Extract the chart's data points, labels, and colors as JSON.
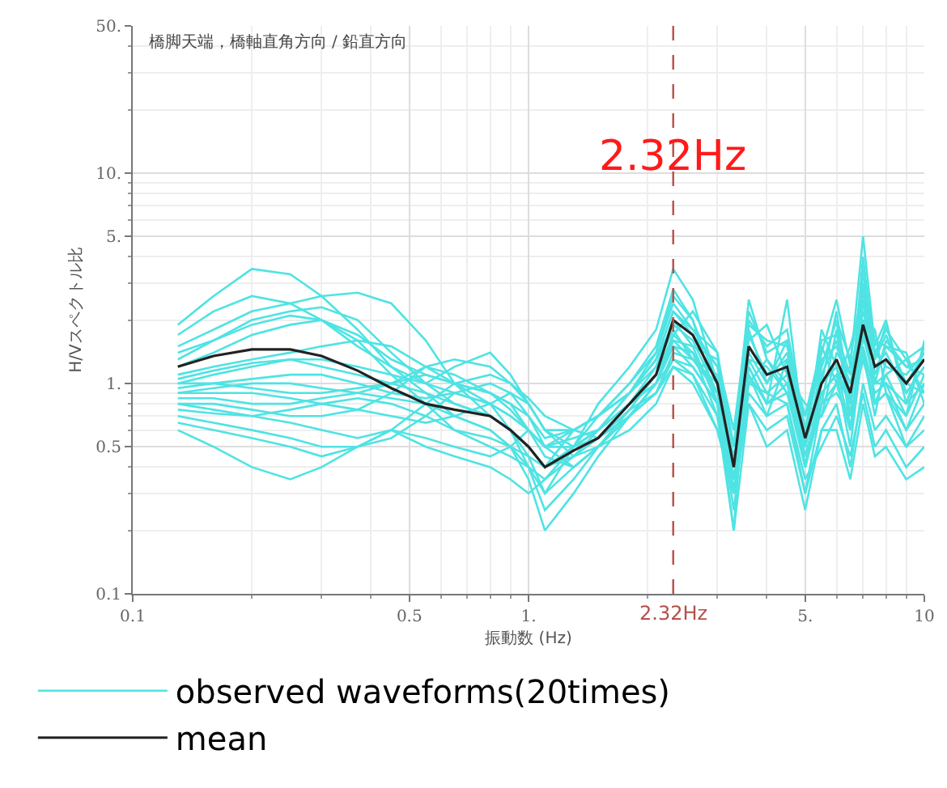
{
  "chart_data": {
    "type": "line",
    "title": "橋脚天端，橋軸直角方向 / 鉛直方向",
    "xlabel": "振動数 (Hz)",
    "ylabel": "H/Vスペクトル比",
    "x": [
      0.13,
      0.16,
      0.2,
      0.25,
      0.3,
      0.37,
      0.45,
      0.55,
      0.65,
      0.8,
      0.9,
      1,
      1.1,
      1.3,
      1.5,
      1.8,
      2.1,
      2.32,
      2.6,
      3,
      3.3,
      3.6,
      4,
      4.5,
      5,
      5.5,
      6,
      6.5,
      7,
      7.5,
      8,
      9,
      10
    ],
    "xlim": [
      0.1,
      10
    ],
    "ylim": [
      0.1,
      50
    ],
    "xticks": [
      {
        "value": 0.1,
        "label": "0.1"
      },
      {
        "value": 0.5,
        "label": "0.5"
      },
      {
        "value": 1,
        "label": "1."
      },
      {
        "value": 5,
        "label": "5."
      },
      {
        "value": 10,
        "label": "10"
      }
    ],
    "yticks": [
      {
        "value": 0.1,
        "label": "0.1"
      },
      {
        "value": 0.5,
        "label": "0.5"
      },
      {
        "value": 1,
        "label": "1."
      },
      {
        "value": 5,
        "label": "5."
      },
      {
        "value": 10,
        "label": "10."
      },
      {
        "value": 50,
        "label": "50."
      }
    ],
    "log": "xy",
    "grid": true,
    "legend": "bottom",
    "ref_lines": [
      {
        "axis": "x",
        "value": 2.32,
        "label": "2.32Hz",
        "color": "#b5504a",
        "line_style": "dashed"
      }
    ],
    "annotations": [
      {
        "text": "2.32Hz",
        "x": 2.32,
        "y": 12
      }
    ],
    "series": [
      {
        "name": "observed waveforms(20times)",
        "color": "#4fe3e3",
        "values": [
          1.9,
          2.6,
          3.5,
          3.3,
          2.6,
          1.8,
          1.2,
          0.9,
          0.7,
          0.6,
          0.5,
          0.4,
          0.3,
          0.5,
          0.8,
          1.2,
          1.8,
          3.5,
          2.5,
          1.0,
          0.3,
          2.0,
          1.5,
          1.8,
          0.6,
          1.4,
          2.5,
          1.2,
          5.0,
          1.5,
          2.0,
          0.8,
          1.5
        ]
      },
      {
        "color": "#4fe3e3",
        "values": [
          1.7,
          2.2,
          2.6,
          2.4,
          2.0,
          1.5,
          1.2,
          1.0,
          0.8,
          0.7,
          0.6,
          0.5,
          0.4,
          0.6,
          0.7,
          1.0,
          1.4,
          2.6,
          2.0,
          0.8,
          0.2,
          1.8,
          1.0,
          1.6,
          0.4,
          0.8,
          1.8,
          0.7,
          3.5,
          1.0,
          1.6,
          1.2,
          1.1
        ]
      },
      {
        "color": "#4fe3e3",
        "values": [
          1.5,
          1.8,
          2.2,
          2.4,
          2.6,
          2.7,
          2.4,
          1.6,
          1.0,
          0.7,
          0.6,
          0.5,
          0.4,
          0.5,
          0.6,
          0.9,
          1.3,
          2.2,
          1.8,
          1.2,
          0.5,
          2.5,
          1.3,
          1.0,
          0.7,
          1.5,
          1.0,
          1.5,
          2.5,
          0.8,
          1.1,
          1.3,
          0.9
        ]
      },
      {
        "color": "#4fe3e3",
        "values": [
          1.3,
          1.6,
          2.0,
          2.2,
          2.3,
          2.0,
          1.4,
          1.0,
          0.9,
          0.8,
          0.7,
          0.6,
          0.45,
          0.4,
          0.5,
          0.7,
          1.0,
          1.7,
          2.2,
          1.4,
          0.3,
          1.2,
          0.8,
          2.5,
          0.5,
          1.2,
          2.0,
          0.6,
          2.0,
          1.8,
          0.9,
          0.7,
          1.6
        ]
      },
      {
        "color": "#4fe3e3",
        "values": [
          1.2,
          1.4,
          1.7,
          1.9,
          2.0,
          1.7,
          1.3,
          1.1,
          1.0,
          0.9,
          0.8,
          0.6,
          0.5,
          0.55,
          0.6,
          0.8,
          1.2,
          2.0,
          1.5,
          1.3,
          0.6,
          1.6,
          1.9,
          1.1,
          0.8,
          0.7,
          1.4,
          1.1,
          1.6,
          1.3,
          1.9,
          0.9,
          1.2
        ]
      },
      {
        "color": "#4fe3e3",
        "values": [
          1.1,
          1.2,
          1.3,
          1.4,
          1.5,
          1.6,
          1.5,
          1.2,
          1.0,
          0.8,
          0.7,
          0.6,
          0.5,
          0.6,
          0.7,
          0.9,
          1.3,
          1.9,
          1.6,
          0.9,
          0.4,
          1.3,
          1.2,
          0.9,
          0.5,
          1.8,
          1.2,
          0.8,
          2.8,
          1.1,
          1.5,
          1.4,
          0.8
        ]
      },
      {
        "color": "#4fe3e3",
        "values": [
          1.0,
          1.1,
          1.2,
          1.3,
          1.2,
          1.1,
          1.0,
          0.9,
          0.8,
          0.7,
          0.6,
          0.45,
          0.3,
          0.4,
          0.5,
          0.7,
          1.0,
          1.5,
          1.4,
          0.7,
          0.3,
          1.1,
          0.7,
          1.3,
          0.4,
          0.9,
          1.1,
          0.5,
          1.5,
          0.9,
          1.0,
          0.6,
          1.0
        ]
      },
      {
        "color": "#4fe3e3",
        "values": [
          0.95,
          1.0,
          1.05,
          1.1,
          1.1,
          1.0,
          0.9,
          0.85,
          0.9,
          1.0,
          0.9,
          0.7,
          0.5,
          0.5,
          0.6,
          0.9,
          1.2,
          1.8,
          1.3,
          1.1,
          0.5,
          1.4,
          1.0,
          1.4,
          0.6,
          1.3,
          1.5,
          1.0,
          2.2,
          1.4,
          1.2,
          1.1,
          1.4
        ]
      },
      {
        "color": "#4fe3e3",
        "values": [
          0.9,
          0.95,
          1.0,
          1.0,
          0.95,
          0.9,
          0.85,
          0.8,
          0.7,
          0.6,
          0.5,
          0.35,
          0.2,
          0.3,
          0.45,
          0.7,
          1.0,
          1.6,
          1.5,
          0.8,
          0.25,
          1.0,
          0.9,
          0.8,
          0.3,
          0.8,
          0.9,
          0.7,
          1.3,
          0.8,
          0.9,
          0.5,
          0.7
        ]
      },
      {
        "color": "#4fe3e3",
        "values": [
          0.85,
          0.85,
          0.8,
          0.8,
          0.85,
          0.9,
          1.0,
          1.1,
          1.0,
          0.9,
          0.75,
          0.6,
          0.5,
          0.5,
          0.55,
          0.8,
          1.1,
          1.7,
          1.4,
          0.9,
          0.4,
          1.7,
          1.1,
          1.2,
          0.5,
          1.1,
          1.6,
          0.9,
          2.0,
          1.2,
          1.4,
          0.9,
          1.2
        ]
      },
      {
        "color": "#4fe3e3",
        "values": [
          0.8,
          0.8,
          0.75,
          0.7,
          0.7,
          0.75,
          0.9,
          1.2,
          1.3,
          1.2,
          1.0,
          0.8,
          0.6,
          0.5,
          0.6,
          0.8,
          1.0,
          1.5,
          1.2,
          0.8,
          0.3,
          1.2,
          0.8,
          1.0,
          0.4,
          1.0,
          1.2,
          0.6,
          1.7,
          1.0,
          1.0,
          0.8,
          1.0
        ]
      },
      {
        "color": "#4fe3e3",
        "values": [
          0.75,
          0.72,
          0.7,
          0.65,
          0.6,
          0.55,
          0.6,
          0.8,
          1.0,
          1.1,
          1.0,
          0.85,
          0.7,
          0.6,
          0.55,
          0.7,
          0.9,
          1.4,
          1.3,
          1.0,
          0.45,
          1.0,
          1.3,
          0.9,
          0.6,
          0.7,
          1.0,
          1.2,
          1.4,
          0.7,
          1.3,
          1.0,
          0.9
        ]
      },
      {
        "color": "#4fe3e3",
        "values": [
          0.7,
          0.65,
          0.6,
          0.55,
          0.5,
          0.5,
          0.55,
          0.7,
          0.9,
          0.8,
          0.6,
          0.4,
          0.25,
          0.35,
          0.5,
          0.6,
          0.8,
          1.2,
          1.1,
          0.7,
          0.2,
          0.8,
          0.6,
          0.7,
          0.3,
          0.6,
          0.8,
          0.4,
          1.0,
          0.6,
          0.7,
          0.5,
          0.6
        ]
      },
      {
        "color": "#4fe3e3",
        "values": [
          0.65,
          0.6,
          0.55,
          0.5,
          0.45,
          0.5,
          0.6,
          0.5,
          0.45,
          0.4,
          0.35,
          0.3,
          0.35,
          0.45,
          0.6,
          0.8,
          1.0,
          1.3,
          1.1,
          0.6,
          0.3,
          0.9,
          0.7,
          0.8,
          0.35,
          0.5,
          0.7,
          0.45,
          0.9,
          0.5,
          0.6,
          0.4,
          0.5
        ]
      },
      {
        "color": "#4fe3e3",
        "values": [
          0.6,
          0.5,
          0.4,
          0.35,
          0.4,
          0.5,
          0.6,
          0.55,
          0.5,
          0.45,
          0.5,
          0.6,
          0.5,
          0.4,
          0.5,
          0.7,
          0.9,
          1.2,
          1.0,
          0.6,
          0.3,
          0.8,
          0.5,
          0.6,
          0.25,
          0.6,
          0.6,
          0.35,
          0.8,
          0.45,
          0.5,
          0.35,
          0.4
        ]
      },
      {
        "color": "#4fe3e3",
        "values": [
          1.4,
          1.6,
          1.9,
          2.1,
          2.0,
          1.6,
          1.1,
          0.8,
          0.6,
          0.5,
          0.45,
          0.4,
          0.35,
          0.5,
          0.7,
          1.0,
          1.5,
          2.8,
          2.0,
          1.0,
          0.35,
          1.5,
          1.1,
          1.3,
          0.5,
          1.0,
          2.2,
          0.8,
          4.0,
          1.3,
          1.7,
          1.0,
          1.4
        ]
      },
      {
        "color": "#4fe3e3",
        "values": [
          1.05,
          1.15,
          1.25,
          1.3,
          1.3,
          1.2,
          1.1,
          1.0,
          1.2,
          1.4,
          1.1,
          0.8,
          0.6,
          0.6,
          0.7,
          0.9,
          1.3,
          2.2,
          1.7,
          1.2,
          0.6,
          2.2,
          1.4,
          1.6,
          0.6,
          1.6,
          1.7,
          1.1,
          2.4,
          1.6,
          1.5,
          1.2,
          1.3
        ]
      },
      {
        "color": "#4fe3e3",
        "values": [
          0.9,
          0.9,
          0.9,
          0.85,
          0.8,
          0.75,
          0.7,
          0.65,
          0.7,
          0.8,
          0.9,
          0.8,
          0.6,
          0.45,
          0.5,
          0.75,
          1.1,
          1.6,
          1.3,
          0.9,
          0.35,
          1.3,
          0.9,
          1.1,
          0.45,
          0.9,
          1.1,
          0.8,
          1.8,
          1.0,
          1.1,
          0.7,
          1.1
        ]
      },
      {
        "color": "#4fe3e3",
        "values": [
          1.0,
          1.0,
          0.95,
          0.9,
          0.9,
          0.95,
          1.0,
          1.2,
          1.1,
          0.9,
          0.8,
          0.7,
          0.55,
          0.6,
          0.7,
          0.9,
          1.4,
          2.4,
          1.8,
          1.4,
          0.5,
          1.9,
          1.6,
          1.5,
          0.7,
          1.2,
          2.0,
          1.3,
          3.0,
          1.4,
          1.8,
          1.3,
          1.5
        ]
      },
      {
        "color": "#4fe3e3",
        "values": [
          0.8,
          0.75,
          0.7,
          0.75,
          0.8,
          0.85,
          0.8,
          0.7,
          0.6,
          0.55,
          0.5,
          0.45,
          0.4,
          0.45,
          0.55,
          0.75,
          0.9,
          1.3,
          1.2,
          0.8,
          0.3,
          1.1,
          0.8,
          0.9,
          0.4,
          0.8,
          1.0,
          0.6,
          1.4,
          0.8,
          0.9,
          0.6,
          0.8
        ]
      },
      {
        "name": "mean",
        "color": "#222222",
        "values": [
          1.2,
          1.35,
          1.45,
          1.45,
          1.35,
          1.15,
          0.95,
          0.8,
          0.75,
          0.7,
          0.6,
          0.5,
          0.4,
          0.48,
          0.55,
          0.8,
          1.1,
          2.0,
          1.7,
          1.0,
          0.4,
          1.5,
          1.1,
          1.2,
          0.55,
          1.0,
          1.3,
          0.9,
          1.9,
          1.2,
          1.3,
          1.0,
          1.3
        ]
      }
    ]
  }
}
